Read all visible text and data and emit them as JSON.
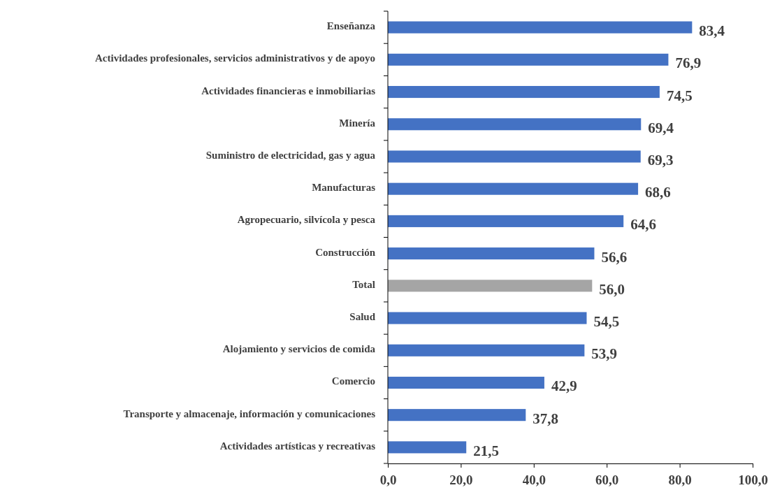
{
  "chart_data": {
    "type": "bar",
    "orientation": "horizontal",
    "categories": [
      "Enseñanza",
      "Actividades profesionales, servicios administrativos y de apoyo",
      "Actividades financieras e inmobiliarias",
      "Minería",
      "Suministro de electricidad, gas y agua",
      "Manufacturas",
      "Agropecuario, silvícola y pesca",
      "Construcción",
      "Total",
      "Salud",
      "Alojamiento y servicios de comida",
      "Comercio",
      "Transporte y almacenaje, información y comunicaciones",
      "Actividades artísticas y recreativas"
    ],
    "values": [
      83.4,
      76.9,
      74.5,
      69.4,
      69.3,
      68.6,
      64.6,
      56.6,
      56.0,
      54.5,
      53.9,
      42.9,
      37.8,
      21.5
    ],
    "colors": [
      "#4472c4",
      "#4472c4",
      "#4472c4",
      "#4472c4",
      "#4472c4",
      "#4472c4",
      "#4472c4",
      "#4472c4",
      "#a5a5a5",
      "#4472c4",
      "#4472c4",
      "#4472c4",
      "#4472c4",
      "#4472c4"
    ],
    "value_labels": [
      "83,4",
      "76,9",
      "74,5",
      "69,4",
      "69,3",
      "68,6",
      "64,6",
      "56,6",
      "56,0",
      "54,5",
      "53,9",
      "42,9",
      "37,8",
      "21,5"
    ],
    "xlim": [
      0,
      100
    ],
    "xticks": [
      {
        "value": 0,
        "label": "0,0"
      },
      {
        "value": 20,
        "label": "20,0"
      },
      {
        "value": 40,
        "label": "40,0"
      },
      {
        "value": 60,
        "label": "60,0"
      },
      {
        "value": 80,
        "label": "80,0"
      },
      {
        "value": 100,
        "label": "100,0"
      }
    ],
    "grid": false
  }
}
